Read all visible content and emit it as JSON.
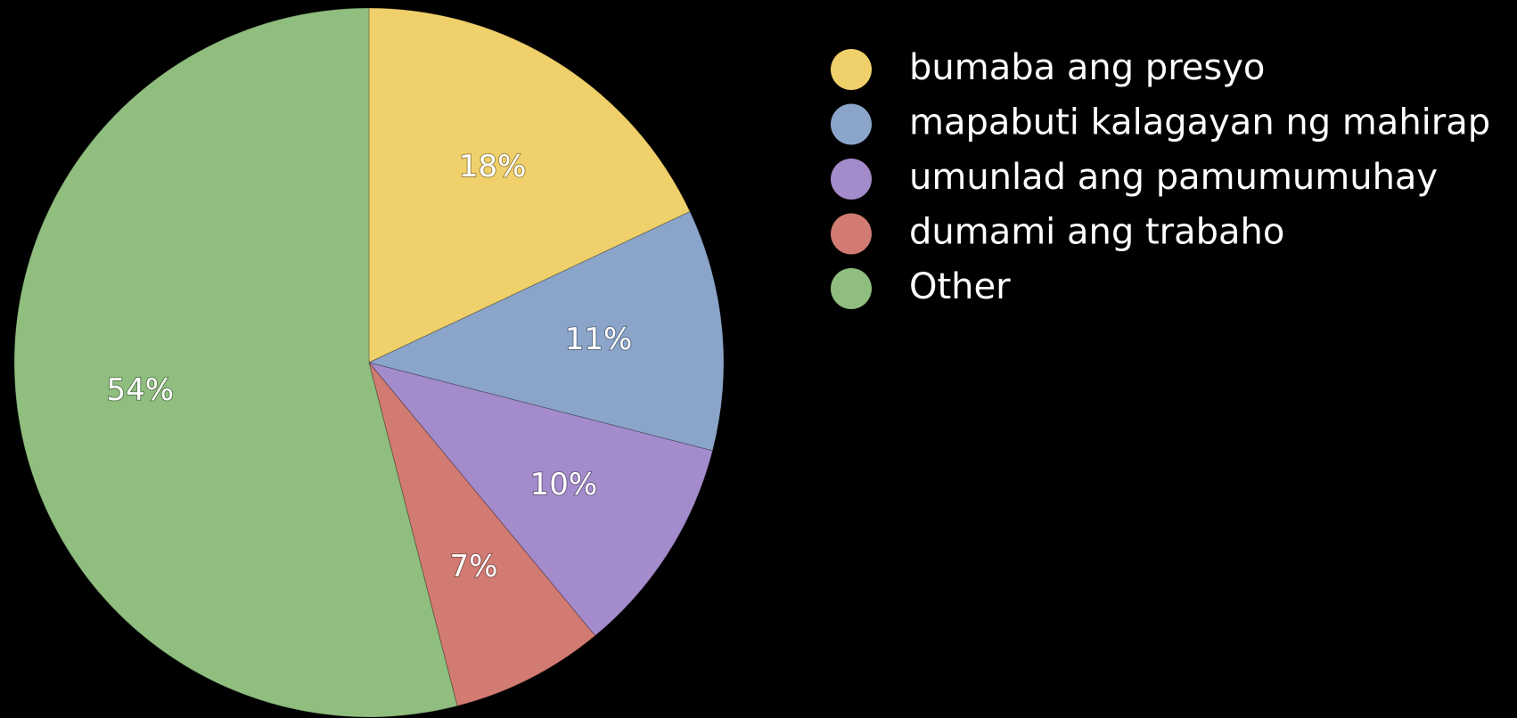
{
  "chart_data": {
    "type": "pie",
    "categories": [
      "bumaba ang presyo",
      "mapabuti kalagayan ng mahirap",
      "umunlad ang pamumumuhay",
      "dumami ang trabaho",
      "Other"
    ],
    "values": [
      18,
      11,
      10,
      7,
      54
    ],
    "value_labels": [
      "18%",
      "11%",
      "10%",
      "7%",
      "54%"
    ],
    "colors": [
      "#f0d06a",
      "#8ba5ca",
      "#a48bcb",
      "#d27b73",
      "#8fbe7e"
    ],
    "legend": "right"
  }
}
